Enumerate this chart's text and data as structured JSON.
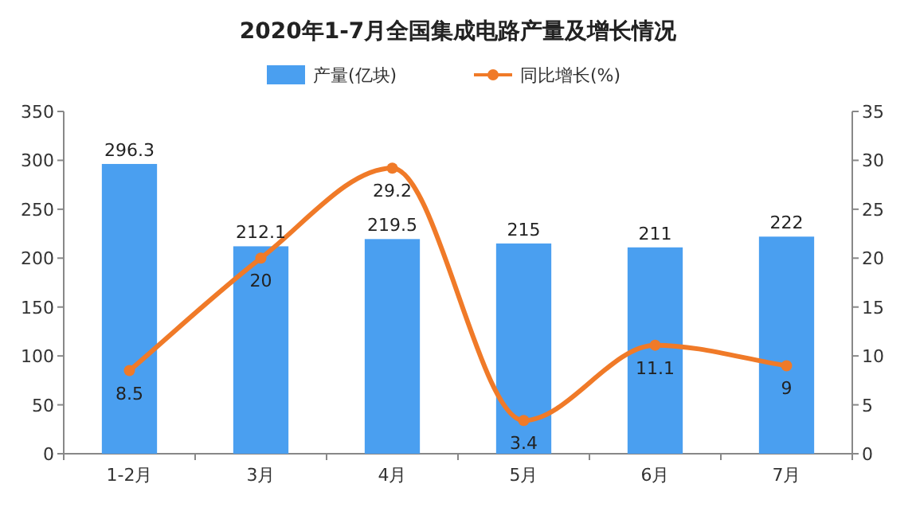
{
  "chart_data": {
    "type": "bar",
    "title": "2020年1-7月全国集成电路产量及增长情况",
    "categories": [
      "1-2月",
      "3月",
      "4月",
      "5月",
      "6月",
      "7月"
    ],
    "series": [
      {
        "name": "产量(亿块)",
        "color": "#4a9ff0",
        "values": [
          296.3,
          212.1,
          219.5,
          215,
          211,
          222
        ]
      },
      {
        "name": "同比增长(%)",
        "type": "line",
        "axis": "y2",
        "color": "#f07a28",
        "marker": "circle",
        "values": [
          8.5,
          20,
          29.2,
          3.4,
          11.1,
          9
        ]
      }
    ],
    "ylim": [
      0,
      350
    ],
    "yticks": [
      0,
      50,
      100,
      150,
      200,
      250,
      300,
      350
    ],
    "y2lim": [
      0,
      35
    ],
    "y2ticks": [
      0,
      5,
      10,
      15,
      20,
      25,
      30,
      35
    ],
    "legend": "top",
    "grid": false,
    "data_labels": true
  }
}
